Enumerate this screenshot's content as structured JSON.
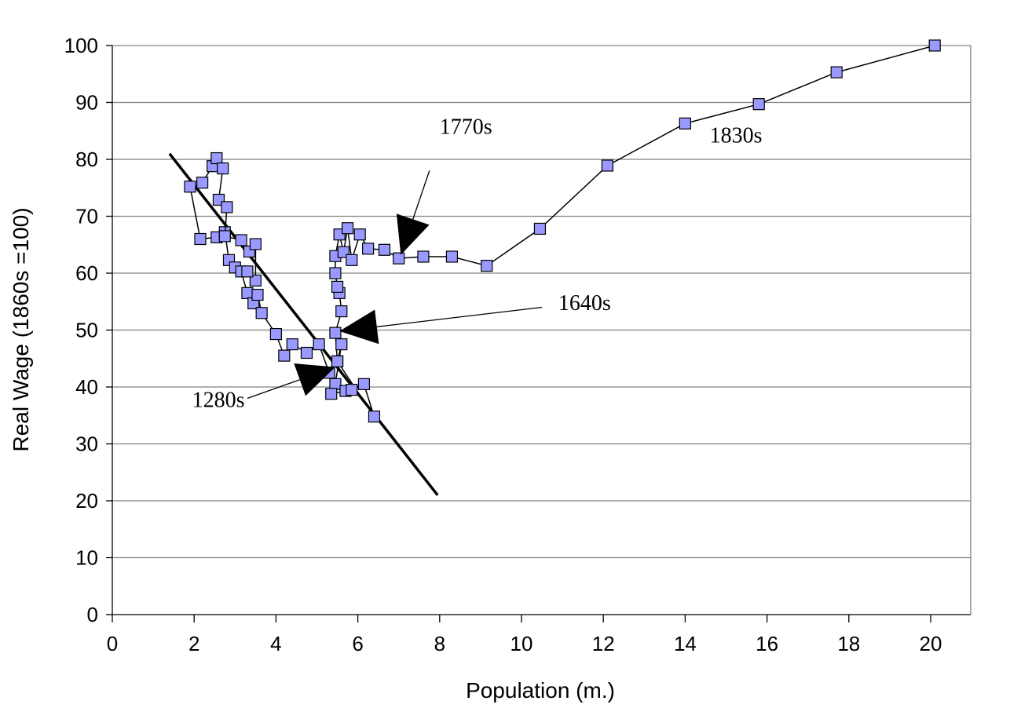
{
  "chart_data": {
    "type": "scatter",
    "title": "",
    "xlabel": "Population (m.)",
    "ylabel": "Real Wage (1860s =100)",
    "xlim": [
      0,
      21
    ],
    "ylim": [
      0,
      100
    ],
    "xticks": [
      0,
      2,
      4,
      6,
      8,
      10,
      12,
      14,
      16,
      18,
      20
    ],
    "yticks": [
      0,
      10,
      20,
      30,
      40,
      50,
      60,
      70,
      80,
      90,
      100
    ],
    "grid": "horizontal",
    "colors": {
      "marker_fill": "#9999ff",
      "marker_edge": "#000000",
      "line": "#000000",
      "grid": "#808080"
    },
    "series": [
      {
        "type": "line-markers",
        "values": [
          [
            1.9,
            75.2
          ],
          [
            2.15,
            66.0
          ],
          [
            2.55,
            66.3
          ],
          [
            2.75,
            67.2
          ],
          [
            2.85,
            62.3
          ],
          [
            3.0,
            61.0
          ],
          [
            3.15,
            60.3
          ],
          [
            3.3,
            56.5
          ],
          [
            3.45,
            54.7
          ],
          [
            3.55,
            56.2
          ],
          [
            3.65,
            53.0
          ],
          [
            4.0,
            49.3
          ],
          [
            4.2,
            45.5
          ],
          [
            4.4,
            47.5
          ],
          [
            4.75,
            46.0
          ],
          [
            5.05,
            47.5
          ],
          [
            5.3,
            42.5
          ],
          [
            5.5,
            44.5
          ],
          [
            5.6,
            47.5
          ],
          [
            5.45,
            40.5
          ],
          [
            5.35,
            38.8
          ],
          [
            5.7,
            39.3
          ],
          [
            5.85,
            39.5
          ],
          [
            6.15,
            40.5
          ],
          [
            6.4,
            34.8
          ],
          [
            5.5,
            44.5
          ],
          [
            5.45,
            49.5
          ],
          [
            5.6,
            53.3
          ],
          [
            5.55,
            56.5
          ],
          [
            5.5,
            57.6
          ],
          [
            5.45,
            60.0
          ],
          [
            5.45,
            63.0
          ],
          [
            5.55,
            66.8
          ],
          [
            5.65,
            63.7
          ],
          [
            5.75,
            67.9
          ],
          [
            5.85,
            62.3
          ],
          [
            6.05,
            66.8
          ],
          [
            6.25,
            64.3
          ],
          [
            6.65,
            64.1
          ],
          [
            7.0,
            62.6
          ],
          [
            7.6,
            62.9
          ],
          [
            8.3,
            62.9
          ],
          [
            9.15,
            61.3
          ],
          [
            10.45,
            67.8
          ],
          [
            12.1,
            78.9
          ],
          [
            14.0,
            86.3
          ],
          [
            15.8,
            89.7
          ],
          [
            17.7,
            95.3
          ],
          [
            20.1,
            100.0
          ]
        ]
      },
      {
        "type": "line-markers",
        "values": [
          [
            2.2,
            75.9
          ],
          [
            2.45,
            78.8
          ],
          [
            2.55,
            80.2
          ],
          [
            2.7,
            78.4
          ],
          [
            2.6,
            72.9
          ],
          [
            2.8,
            71.6
          ],
          [
            2.75,
            66.5
          ],
          [
            3.15,
            65.8
          ],
          [
            3.35,
            63.8
          ],
          [
            3.5,
            65.1
          ],
          [
            3.5,
            58.7
          ],
          [
            3.3,
            60.3
          ]
        ]
      },
      {
        "type": "trend-line",
        "values": [
          [
            1.4,
            81.0
          ],
          [
            7.95,
            21.0
          ]
        ]
      }
    ],
    "annotations": [
      {
        "text": "1770s",
        "text_at": [
          8.0,
          84.5
        ],
        "arrow_from": [
          7.75,
          78.0
        ],
        "arrow_to": [
          7.05,
          63.2
        ]
      },
      {
        "text": "1830s",
        "text_at": [
          14.6,
          83.0
        ],
        "arrow_from": null,
        "arrow_to": null
      },
      {
        "text": "1640s",
        "text_at": [
          10.9,
          53.5
        ],
        "arrow_from": [
          10.5,
          54.0
        ],
        "arrow_to": [
          5.55,
          49.8
        ]
      },
      {
        "text": "1280s",
        "text_at": [
          1.95,
          36.5
        ],
        "arrow_from": [
          3.3,
          38.0
        ],
        "arrow_to": [
          5.45,
          43.5
        ]
      }
    ]
  }
}
